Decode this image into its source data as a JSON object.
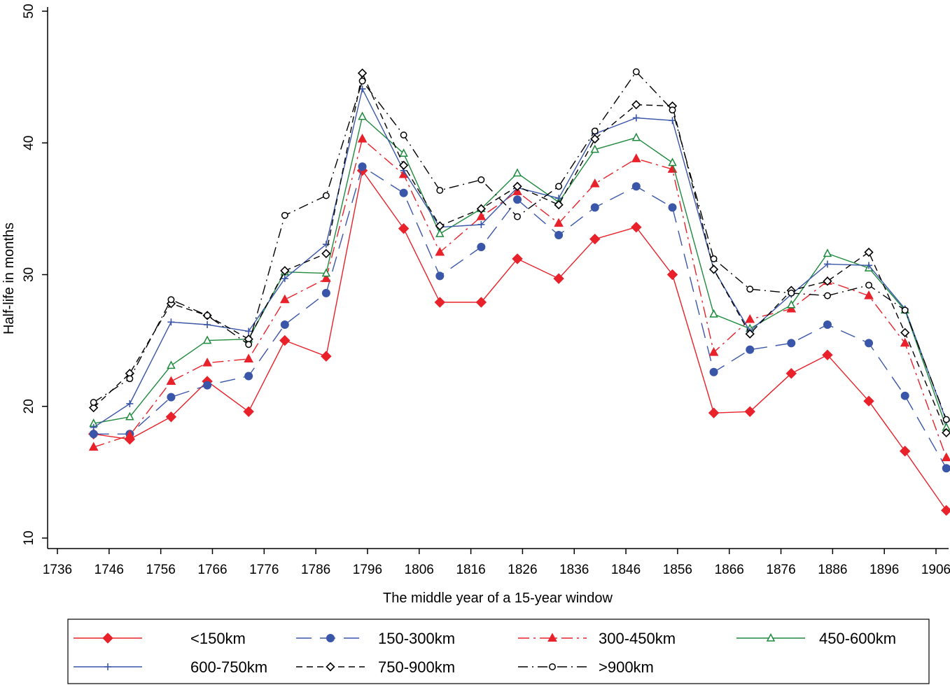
{
  "chart_data": {
    "type": "line",
    "title": "",
    "xlabel": "The middle year of a 15-year window",
    "ylabel": "Half-life in months",
    "xlim": [
      1733,
      1915
    ],
    "ylim": [
      9,
      50
    ],
    "x_ticks": [
      1736,
      1746,
      1756,
      1766,
      1776,
      1786,
      1796,
      1806,
      1816,
      1826,
      1836,
      1846,
      1856,
      1866,
      1876,
      1886,
      1896,
      1906
    ],
    "y_ticks": [
      10,
      20,
      30,
      40,
      50
    ],
    "grid": false,
    "legend_position": "bottom",
    "x": [
      1743,
      1750,
      1758,
      1765,
      1773,
      1780,
      1788,
      1795,
      1803,
      1810,
      1818,
      1825,
      1833,
      1840,
      1848,
      1855,
      1863,
      1870,
      1878,
      1885,
      1893,
      1900,
      1908
    ],
    "series": [
      {
        "name": "<150km",
        "color": "#e8212a",
        "dash": "",
        "marker": "diamond-filled",
        "values": [
          17.9,
          17.5,
          19.2,
          21.9,
          19.6,
          25.0,
          23.8,
          37.9,
          33.5,
          27.9,
          27.9,
          31.2,
          29.7,
          32.7,
          33.6,
          30.0,
          19.5,
          19.6,
          22.5,
          23.9,
          20.4,
          16.6,
          12.1
        ]
      },
      {
        "name": "150-300km",
        "color": "#3a56a8",
        "dash": "22,12",
        "marker": "circle-filled",
        "values": [
          17.9,
          17.9,
          20.7,
          21.6,
          22.3,
          26.2,
          28.6,
          38.2,
          36.2,
          29.9,
          32.1,
          35.7,
          33.0,
          35.1,
          36.7,
          35.1,
          22.6,
          24.3,
          24.8,
          26.2,
          24.8,
          20.8,
          15.3
        ]
      },
      {
        "name": "300-450km",
        "color": "#e8212a",
        "dash": "16,6,3,6",
        "marker": "triangle-filled",
        "values": [
          16.9,
          17.8,
          21.9,
          23.3,
          23.6,
          28.1,
          29.7,
          40.3,
          37.6,
          31.7,
          34.4,
          36.3,
          33.9,
          36.9,
          38.8,
          38.0,
          24.1,
          26.6,
          27.4,
          29.5,
          28.4,
          24.8,
          16.1
        ]
      },
      {
        "name": "450-600km",
        "color": "#1f8a3e",
        "dash": "",
        "marker": "triangle-open",
        "values": [
          18.7,
          19.2,
          23.1,
          25.0,
          25.1,
          30.2,
          30.1,
          42.0,
          39.2,
          33.1,
          35.0,
          37.7,
          35.5,
          39.5,
          40.4,
          38.5,
          27.0,
          25.9,
          27.7,
          31.6,
          30.5,
          27.3,
          18.4
        ]
      },
      {
        "name": "600-750km",
        "color": "#3a56a8",
        "dash": "",
        "marker": "plus",
        "values": [
          18.4,
          20.2,
          26.4,
          26.2,
          25.7,
          29.7,
          32.3,
          44.1,
          37.9,
          33.6,
          33.8,
          36.6,
          35.8,
          40.7,
          41.9,
          41.7,
          30.4,
          25.7,
          28.5,
          30.8,
          30.7,
          27.4,
          18.9
        ]
      },
      {
        "name": "750-900km",
        "color": "#000000",
        "dash": "9,6",
        "marker": "diamond-open",
        "values": [
          19.9,
          22.5,
          27.8,
          26.9,
          25.1,
          30.3,
          31.6,
          45.3,
          38.3,
          33.7,
          35.0,
          36.7,
          35.3,
          40.3,
          42.9,
          42.8,
          30.4,
          25.5,
          28.8,
          29.5,
          31.7,
          25.6,
          18.0
        ]
      },
      {
        "name": ">900km",
        "color": "#000000",
        "dash": "14,6,2,6",
        "marker": "circle-open",
        "values": [
          20.3,
          22.1,
          28.1,
          26.9,
          24.7,
          34.5,
          36.0,
          44.7,
          40.6,
          36.4,
          37.2,
          34.4,
          36.7,
          40.9,
          45.4,
          42.5,
          31.2,
          28.9,
          28.6,
          28.4,
          29.2,
          27.3,
          19.0
        ]
      }
    ]
  }
}
